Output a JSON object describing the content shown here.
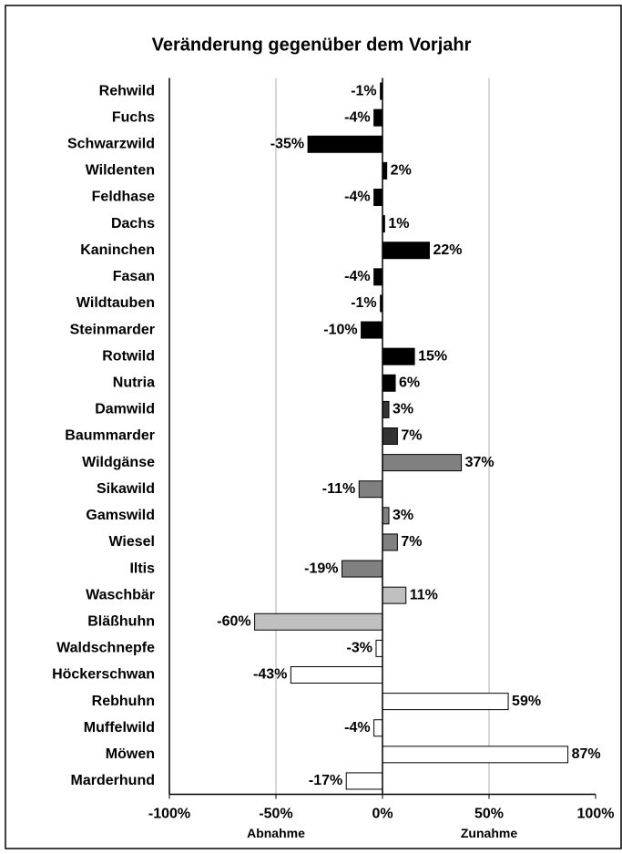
{
  "chart_data": {
    "type": "hbar",
    "title": "Veränderung gegenüber dem Vorjahr",
    "categories": [
      "Rehwild",
      "Fuchs",
      "Schwarzwild",
      "Wildenten",
      "Feldhase",
      "Dachs",
      "Kaninchen",
      "Fasan",
      "Wildtauben",
      "Steinmarder",
      "Rotwild",
      "Nutria",
      "Damwild",
      "Baummarder",
      "Wildgänse",
      "Sikawild",
      "Gamswild",
      "Wiesel",
      "Iltis",
      "Waschbär",
      "Bläßhuhn",
      "Waldschnepfe",
      "Höckerschwan",
      "Rebhuhn",
      "Muffelwild",
      "Möwen",
      "Marderhund"
    ],
    "values": [
      -1,
      -4,
      -35,
      2,
      -4,
      1,
      22,
      -4,
      -1,
      -10,
      15,
      6,
      3,
      7,
      37,
      -11,
      3,
      7,
      -19,
      11,
      -60,
      -3,
      -43,
      59,
      -4,
      87,
      -17
    ],
    "value_labels": [
      "-1%",
      "-4%",
      "-35%",
      "2%",
      "-4%",
      "1%",
      "22%",
      "-4%",
      "-1%",
      "-10%",
      "15%",
      "6%",
      "3%",
      "7%",
      "37%",
      "-11%",
      "3%",
      "7%",
      "-19%",
      "11%",
      "-60%",
      "-3%",
      "-43%",
      "59%",
      "-4%",
      "87%",
      "-17%"
    ],
    "colors": [
      "#000000",
      "#000000",
      "#000000",
      "#000000",
      "#000000",
      "#000000",
      "#000000",
      "#000000",
      "#000000",
      "#000000",
      "#000000",
      "#000000",
      "#333333",
      "#333333",
      "#808080",
      "#808080",
      "#808080",
      "#808080",
      "#808080",
      "#c0c0c0",
      "#c0c0c0",
      "#ffffff",
      "#ffffff",
      "#ffffff",
      "#ffffff",
      "#ffffff",
      "#ffffff"
    ],
    "xlim": [
      -100,
      100
    ],
    "xticks": [
      {
        "value": -100,
        "label": "-100%"
      },
      {
        "value": -50,
        "label": "-50%"
      },
      {
        "value": 0,
        "label": "0%"
      },
      {
        "value": 50,
        "label": "50%"
      },
      {
        "value": 100,
        "label": "100%"
      }
    ],
    "x_annotations": [
      "Abnahme",
      "Zunahme"
    ],
    "grid": true
  }
}
